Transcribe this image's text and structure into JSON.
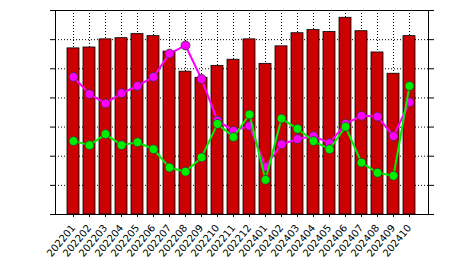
{
  "chart_data": {
    "type": "bar",
    "categories": [
      "202201",
      "202202",
      "202203",
      "202204",
      "202205",
      "202206",
      "202207",
      "202208",
      "202209",
      "202210",
      "202211",
      "202212",
      "202401",
      "202402",
      "202403",
      "202404",
      "202405",
      "202406",
      "202407",
      "202408",
      "202409",
      "202410"
    ],
    "series": [
      {
        "type": "bar",
        "color": "#cc0000",
        "values": [
          5.7,
          5.73,
          6.01,
          6.05,
          6.19,
          6.12,
          5.59,
          4.9,
          4.69,
          5.1,
          5.31,
          6.01,
          5.17,
          5.77,
          6.22,
          6.33,
          6.26,
          6.75,
          6.29,
          5.56,
          4.83,
          6.12
        ]
      },
      {
        "type": "line",
        "color": "#ff00ff",
        "marker": "circle",
        "values": [
          4.72,
          4.13,
          3.81,
          4.16,
          4.41,
          4.72,
          5.52,
          5.8,
          4.65,
          3.22,
          2.87,
          3.04,
          1.64,
          2.41,
          2.59,
          2.69,
          2.45,
          3.11,
          3.39,
          3.36,
          2.69,
          3.85
        ]
      },
      {
        "type": "line",
        "color": "#00ee00",
        "marker": "circle",
        "values": [
          2.52,
          2.38,
          2.76,
          2.38,
          2.48,
          2.24,
          1.61,
          1.47,
          1.96,
          3.11,
          2.66,
          3.43,
          1.19,
          3.29,
          2.94,
          2.52,
          2.24,
          3.01,
          1.78,
          1.43,
          1.33,
          4.41
        ]
      }
    ],
    "ylim": [
      0,
      7
    ],
    "yticks": [
      0,
      1,
      2,
      3,
      4,
      5,
      6,
      7
    ],
    "grid": true,
    "tick_labels": "x"
  }
}
